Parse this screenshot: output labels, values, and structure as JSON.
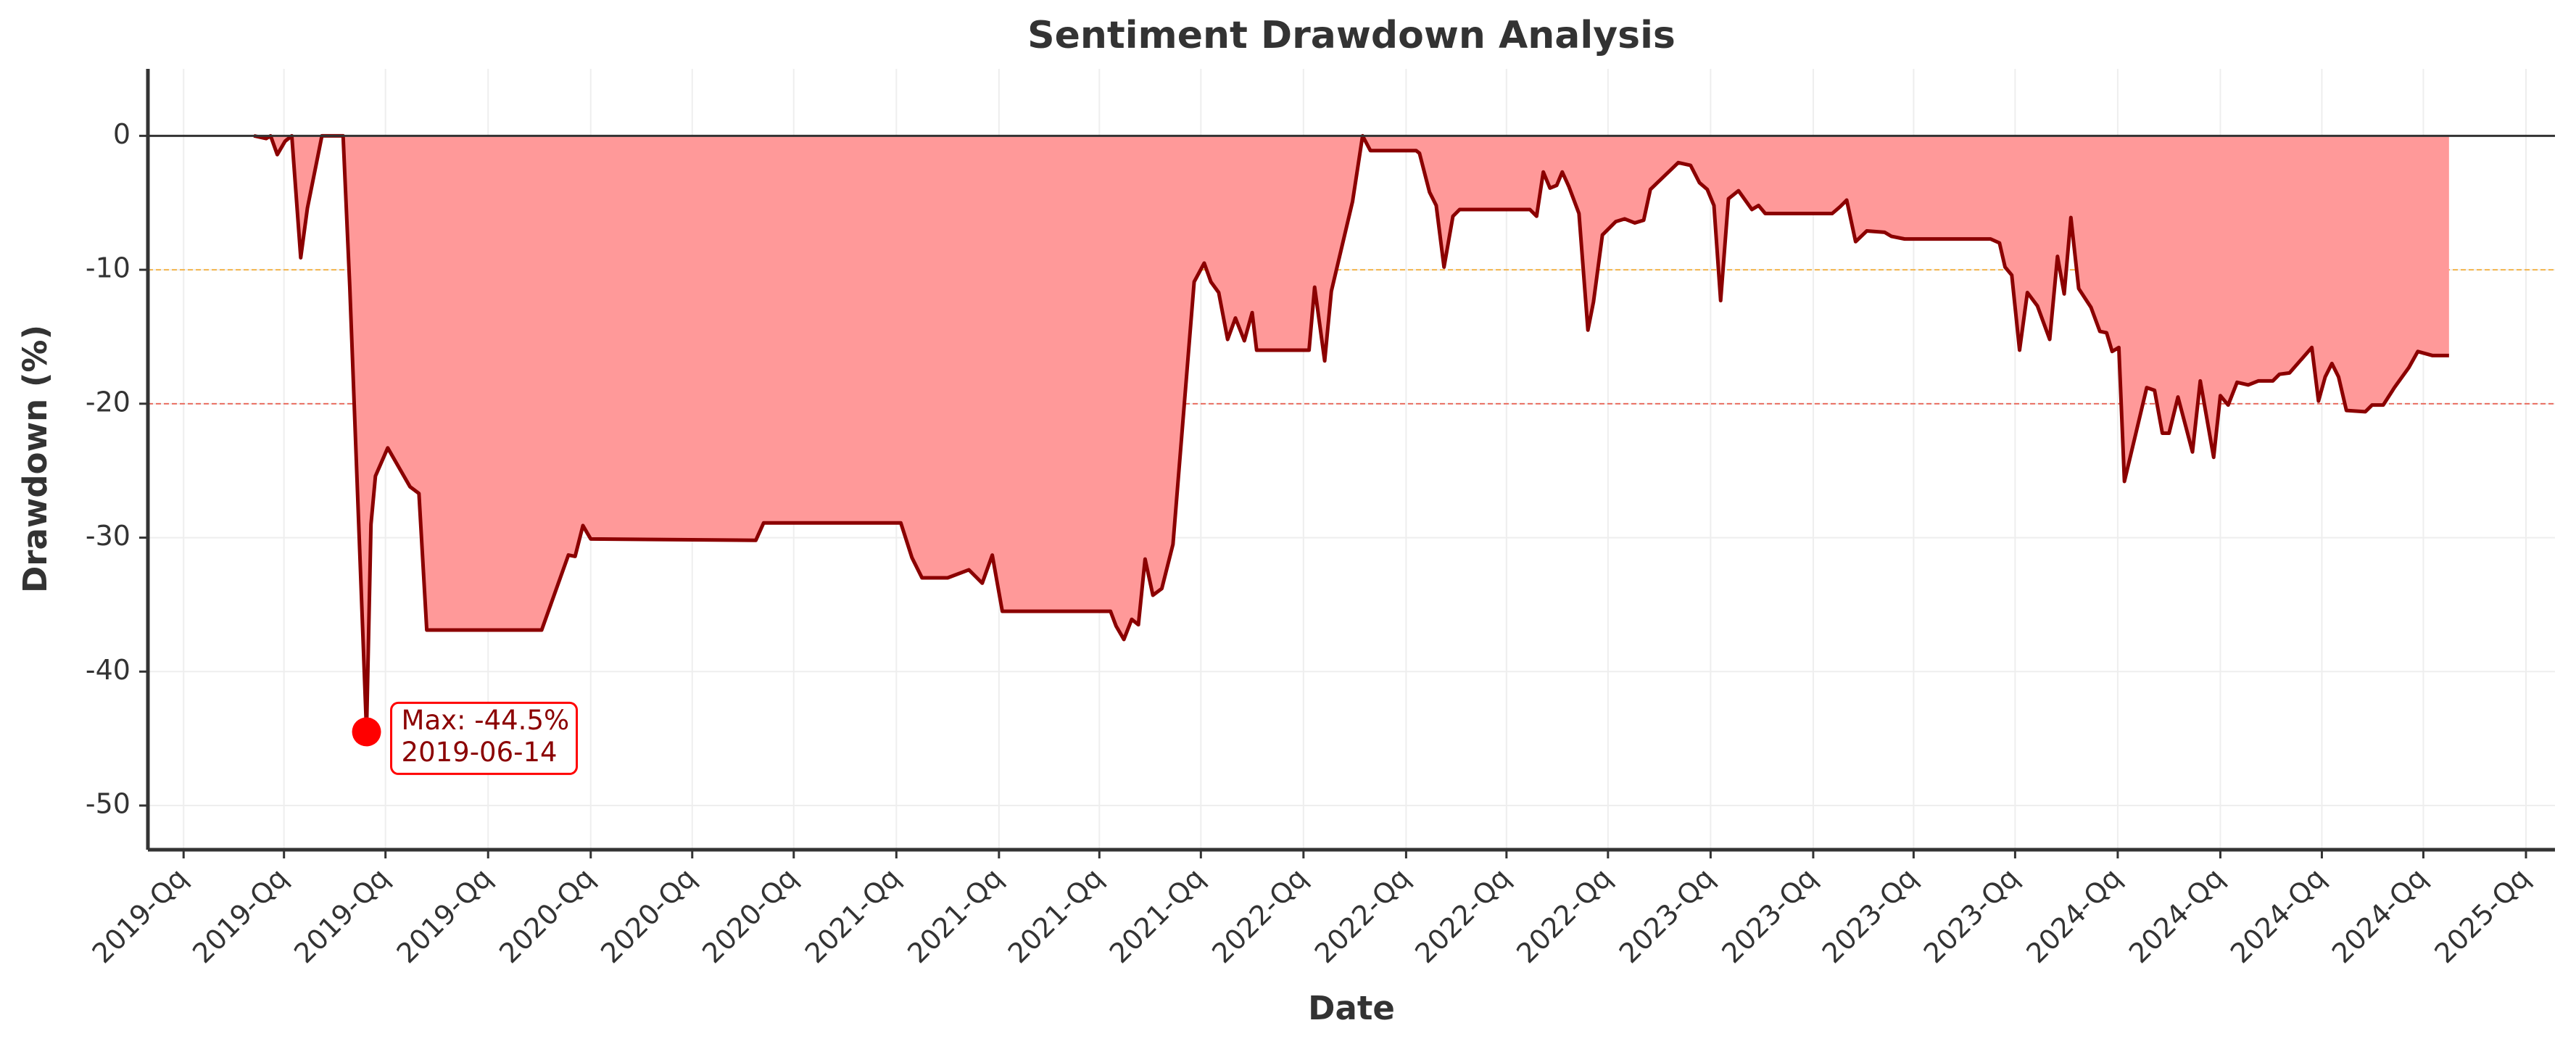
{
  "chart_data": {
    "type": "area",
    "title": "Sentiment Drawdown Analysis",
    "xlabel": "Date",
    "ylabel": "Drawdown (%)",
    "x": [
      "2019-03-05",
      "2019-03-16",
      "2019-03-20",
      "2019-03-26",
      "2019-04-02",
      "2019-04-08",
      "2019-04-16",
      "2019-04-22",
      "2019-05-05",
      "2019-05-24",
      "2019-05-30",
      "2019-06-14",
      "2019-06-18",
      "2019-06-22",
      "2019-07-03",
      "2019-07-23",
      "2019-07-31",
      "2019-08-07",
      "2019-11-18",
      "2019-12-12",
      "2019-12-18",
      "2019-12-25",
      "2020-01-01",
      "2020-05-28",
      "2020-06-04",
      "2020-10-05",
      "2020-10-15",
      "2020-10-24",
      "2020-11-16",
      "2020-12-05",
      "2020-12-17",
      "2020-12-26",
      "2021-01-04",
      "2021-04-11",
      "2021-04-16",
      "2021-04-23",
      "2021-04-30",
      "2021-05-06",
      "2021-05-12",
      "2021-05-19",
      "2021-05-27",
      "2021-06-06",
      "2021-06-25",
      "2021-07-04",
      "2021-07-10",
      "2021-07-17",
      "2021-07-25",
      "2021-08-01",
      "2021-08-09",
      "2021-08-16",
      "2021-08-20",
      "2021-10-06",
      "2021-10-11",
      "2021-10-20",
      "2021-10-26",
      "2021-11-14",
      "2021-11-23",
      "2021-11-30",
      "2022-01-10",
      "2022-01-13",
      "2022-01-22",
      "2022-01-28",
      "2022-02-04",
      "2022-02-12",
      "2022-02-18",
      "2022-04-22",
      "2022-04-28",
      "2022-05-04",
      "2022-05-10",
      "2022-05-16",
      "2022-05-21",
      "2022-05-27",
      "2022-06-05",
      "2022-06-13",
      "2022-06-18",
      "2022-06-26",
      "2022-07-08",
      "2022-07-16",
      "2022-07-25",
      "2022-08-02",
      "2022-08-08",
      "2022-09-02",
      "2022-09-13",
      "2022-09-21",
      "2022-09-28",
      "2022-10-04",
      "2022-10-10",
      "2022-10-17",
      "2022-10-26",
      "2022-11-07",
      "2022-11-13",
      "2022-11-19",
      "2023-01-18",
      "2023-01-25",
      "2023-01-31",
      "2023-02-08",
      "2023-02-18",
      "2023-03-06",
      "2023-03-12",
      "2023-03-24",
      "2023-06-09",
      "2023-06-17",
      "2023-06-22",
      "2023-06-28",
      "2023-07-05",
      "2023-07-12",
      "2023-07-21",
      "2023-08-01",
      "2023-08-08",
      "2023-08-14",
      "2023-08-20",
      "2023-08-27",
      "2023-09-07",
      "2023-09-15",
      "2023-09-21",
      "2023-09-26",
      "2023-10-02",
      "2023-10-07",
      "2023-10-27",
      "2023-11-03",
      "2023-11-10",
      "2023-11-16",
      "2023-11-24",
      "2023-12-01",
      "2023-12-07",
      "2023-12-14",
      "2023-12-26",
      "2024-01-01",
      "2024-01-08",
      "2024-01-16",
      "2024-01-26",
      "2024-02-04",
      "2024-02-17",
      "2024-02-23",
      "2024-03-03",
      "2024-03-23",
      "2024-03-29",
      "2024-04-04",
      "2024-04-10",
      "2024-04-16",
      "2024-04-23",
      "2024-05-10",
      "2024-05-16",
      "2024-05-26",
      "2024-06-05",
      "2024-06-18",
      "2024-06-26",
      "2024-07-09",
      "2024-07-24"
    ],
    "values": [
      0,
      -0.2,
      0,
      -1.4,
      -0.4,
      0,
      -9.1,
      -5.4,
      0,
      0,
      -11.3,
      -44.5,
      -29,
      -25.4,
      -23.3,
      -26.2,
      -26.7,
      -36.9,
      -36.9,
      -31.3,
      -31.4,
      -29.1,
      -30.1,
      -30.2,
      -28.9,
      -28.9,
      -31.5,
      -33,
      -33,
      -32.4,
      -33.4,
      -31.3,
      -35.5,
      -35.5,
      -36.6,
      -37.6,
      -36.1,
      -36.5,
      -31.6,
      -34.3,
      -33.8,
      -30.5,
      -10.9,
      -9.5,
      -10.9,
      -11.7,
      -15.2,
      -13.6,
      -15.3,
      -13.2,
      -16,
      -16,
      -11.3,
      -16.8,
      -11.6,
      -4.9,
      0,
      -1.1,
      -1.1,
      -1.3,
      -4.2,
      -5.2,
      -9.8,
      -6,
      -5.5,
      -5.5,
      -6,
      -2.7,
      -3.9,
      -3.7,
      -2.7,
      -3.8,
      -5.8,
      -14.5,
      -12.4,
      -7.4,
      -6.4,
      -6.2,
      -6.5,
      -6.3,
      -4,
      -2,
      -2.2,
      -3.5,
      -4,
      -5.2,
      -12.3,
      -4.7,
      -4.1,
      -5.5,
      -5.2,
      -5.8,
      -5.8,
      -5.3,
      -4.8,
      -7.9,
      -7.1,
      -7.2,
      -7.5,
      -7.7,
      -7.7,
      -8,
      -9.8,
      -10.4,
      -16,
      -11.7,
      -12.7,
      -15.2,
      -9,
      -11.8,
      -6.1,
      -11.4,
      -12.8,
      -14.6,
      -14.7,
      -16.1,
      -15.8,
      -25.8,
      -18.8,
      -19,
      -22.2,
      -22.2,
      -19.5,
      -21.7,
      -23.6,
      -18.3,
      -24,
      -19.4,
      -20.1,
      -18.4,
      -18.6,
      -18.3,
      -18.3,
      -17.8,
      -17.7,
      -15.8,
      -19.8,
      -18,
      -17,
      -18,
      -20.5,
      -20.6,
      -20.1,
      -20.1,
      -18.8,
      -17.3,
      -16.1,
      -16.4,
      -16.4
    ],
    "color": "#8b0000",
    "fill_color": "#ff9999",
    "xlim": [
      "2018-11-30",
      "2024-10-27"
    ],
    "ylim": [
      -53.3,
      5
    ],
    "yticks": [
      -50,
      -40,
      -30,
      -20,
      -10,
      0
    ],
    "xticks": [
      {
        "value": "2019-01-01",
        "label": "2019-Qq"
      },
      {
        "value": "2019-04-01",
        "label": "2019-Qq"
      },
      {
        "value": "2019-07-01",
        "label": "2019-Qq"
      },
      {
        "value": "2019-10-01",
        "label": "2019-Qq"
      },
      {
        "value": "2020-01-01",
        "label": "2020-Qq"
      },
      {
        "value": "2020-04-01",
        "label": "2020-Qq"
      },
      {
        "value": "2020-07-01",
        "label": "2020-Qq"
      },
      {
        "value": "2020-10-01",
        "label": "2021-Qq"
      },
      {
        "value": "2021-01-01",
        "label": "2021-Qq"
      },
      {
        "value": "2021-04-01",
        "label": "2021-Qq"
      },
      {
        "value": "2021-07-01",
        "label": "2021-Qq"
      },
      {
        "value": "2021-10-01",
        "label": "2022-Qq"
      },
      {
        "value": "2022-01-01",
        "label": "2022-Qq"
      },
      {
        "value": "2022-04-01",
        "label": "2022-Qq"
      },
      {
        "value": "2022-07-01",
        "label": "2022-Qq"
      },
      {
        "value": "2022-10-01",
        "label": "2023-Qq"
      },
      {
        "value": "2023-01-01",
        "label": "2023-Qq"
      },
      {
        "value": "2023-04-01",
        "label": "2023-Qq"
      },
      {
        "value": "2023-07-01",
        "label": "2023-Qq"
      },
      {
        "value": "2023-10-01",
        "label": "2024-Qq"
      },
      {
        "value": "2024-01-01",
        "label": "2024-Qq"
      },
      {
        "value": "2024-04-01",
        "label": "2024-Qq"
      },
      {
        "value": "2024-07-01",
        "label": "2024-Qq"
      },
      {
        "value": "2024-10-01",
        "label": "2025-Qq"
      }
    ],
    "hlines": [
      {
        "y": 0,
        "color": "#333333",
        "style": "solid"
      },
      {
        "y": -10,
        "color": "#f5a623",
        "style": "dashed"
      },
      {
        "y": -20,
        "color": "#e74c3c",
        "style": "dashed"
      }
    ],
    "grid": true,
    "annotation": {
      "point": 11,
      "color": "#ff0000",
      "lines": [
        "Max: -44.5%",
        "2019-06-14"
      ]
    }
  }
}
